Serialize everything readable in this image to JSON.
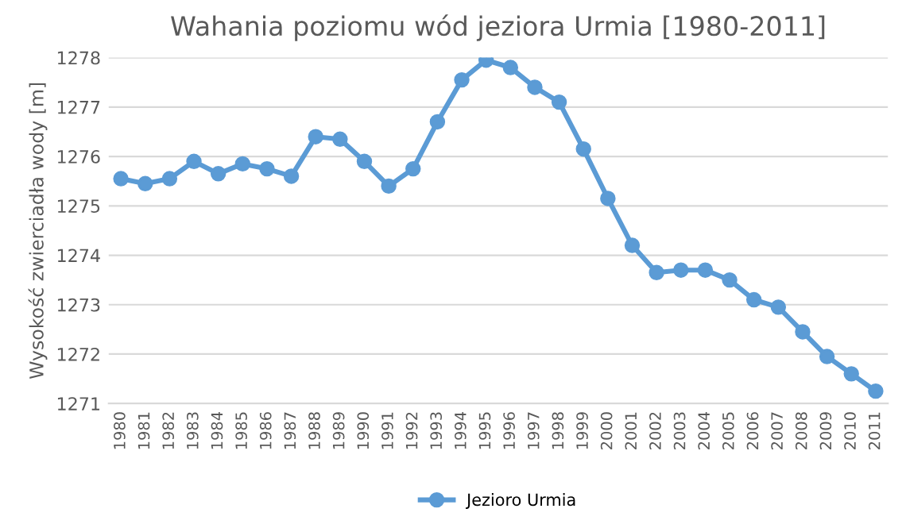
{
  "chart_data": {
    "type": "line",
    "title": "Wahania poziomu wód jeziora Urmia [1980-2011]",
    "ylabel": "Wysokość zwierciadła wody [m]",
    "categories": [
      "1980",
      "1981",
      "1982",
      "1983",
      "1984",
      "1985",
      "1986",
      "1987",
      "1988",
      "1989",
      "1990",
      "1991",
      "1992",
      "1993",
      "1994",
      "1995",
      "1996",
      "1997",
      "1998",
      "1999",
      "2000",
      "2001",
      "2002",
      "2003",
      "2004",
      "2005",
      "2006",
      "2007",
      "2008",
      "2009",
      "2010",
      "2011"
    ],
    "series": [
      {
        "name": "Jezioro Urmia",
        "color": "#5b9bd5",
        "values": [
          1275.55,
          1275.45,
          1275.55,
          1275.9,
          1275.65,
          1275.85,
          1275.75,
          1275.6,
          1276.4,
          1276.35,
          1275.9,
          1275.4,
          1275.75,
          1276.7,
          1277.55,
          1277.95,
          1277.8,
          1277.4,
          1277.1,
          1276.15,
          1275.15,
          1274.2,
          1273.65,
          1273.7,
          1273.7,
          1273.5,
          1273.1,
          1272.95,
          1272.45,
          1271.95,
          1271.6,
          1271.25
        ]
      }
    ],
    "ylim": [
      1271,
      1278
    ],
    "yticks": [
      1271,
      1272,
      1273,
      1274,
      1275,
      1276,
      1277,
      1278
    ],
    "grid": "y",
    "legend": "bottom",
    "marker": "circle",
    "line_style": "solid"
  }
}
